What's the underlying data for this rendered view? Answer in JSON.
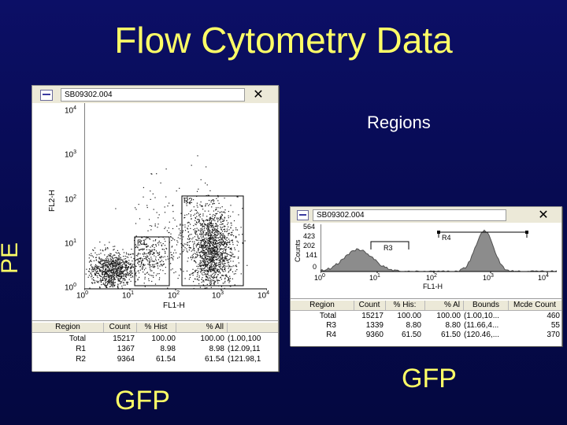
{
  "slide": {
    "title": "Flow Cytometry Data",
    "y_axis_label": "PE",
    "left_caption": "GFP",
    "right_caption": "GFP",
    "regions_label": "Regions"
  },
  "dot_plot_window": {
    "title": "SB09302.004",
    "close_glyph": "✕",
    "y_axis_title": "FL2-H",
    "x_axis_title": "FL1-H",
    "y_ticks": [
      {
        "base": "10",
        "exp": "4"
      },
      {
        "base": "10",
        "exp": "3"
      },
      {
        "base": "10",
        "exp": "2"
      },
      {
        "base": "10",
        "exp": "1"
      },
      {
        "base": "10",
        "exp": "0"
      }
    ],
    "x_ticks": [
      {
        "base": "10",
        "exp": "0"
      },
      {
        "base": "10",
        "exp": "1"
      },
      {
        "base": "10",
        "exp": "2"
      },
      {
        "base": "10",
        "exp": "3"
      },
      {
        "base": "10",
        "exp": "4"
      }
    ],
    "region_labels": {
      "r1": "R1",
      "r2": "R2"
    },
    "stats": {
      "headers": [
        "Region",
        "Count",
        "% Hist",
        "% All",
        ""
      ],
      "rows": [
        [
          "Total",
          "15217",
          "100.00",
          "100.00",
          "(1.00,100"
        ],
        [
          "R1",
          "1367",
          "8.98",
          "8.98",
          "(12.09,11"
        ],
        [
          "R2",
          "9364",
          "61.54",
          "61.54",
          "(121.98,1"
        ]
      ]
    }
  },
  "histogram_window": {
    "title": "SB09302.004",
    "close_glyph": "✕",
    "y_axis_title": "Counts",
    "x_axis_title": "FL1-H",
    "y_ticks": [
      "564",
      "423",
      "202",
      "141",
      "0"
    ],
    "x_ticks": [
      {
        "base": "10",
        "exp": "0"
      },
      {
        "base": "10",
        "exp": "1"
      },
      {
        "base": "10",
        "exp": "2"
      },
      {
        "base": "10",
        "exp": "3"
      },
      {
        "base": "10",
        "exp": "4"
      }
    ],
    "region_labels": {
      "r3": "R3",
      "r4": "R4"
    },
    "stats": {
      "headers": [
        "Region",
        "Count",
        "% His:",
        "% Al",
        "Bounds",
        "Mcde Count"
      ],
      "rows": [
        [
          "Total",
          "15217",
          "100.00",
          "100.00",
          "(1.00,10...",
          "460"
        ],
        [
          "R3",
          "1339",
          "8.80",
          "8.80",
          "(11.66,4...",
          "55"
        ],
        [
          "R4",
          "9360",
          "61.50",
          "61.50",
          "(120.46,...",
          "370"
        ]
      ]
    }
  },
  "colors": {
    "background": "#060a4e",
    "title_yellow": "#ffff66",
    "window_face": "#ece9d8",
    "dots": "#1a1a1a",
    "histogram_fill": "#8c8c8c"
  }
}
